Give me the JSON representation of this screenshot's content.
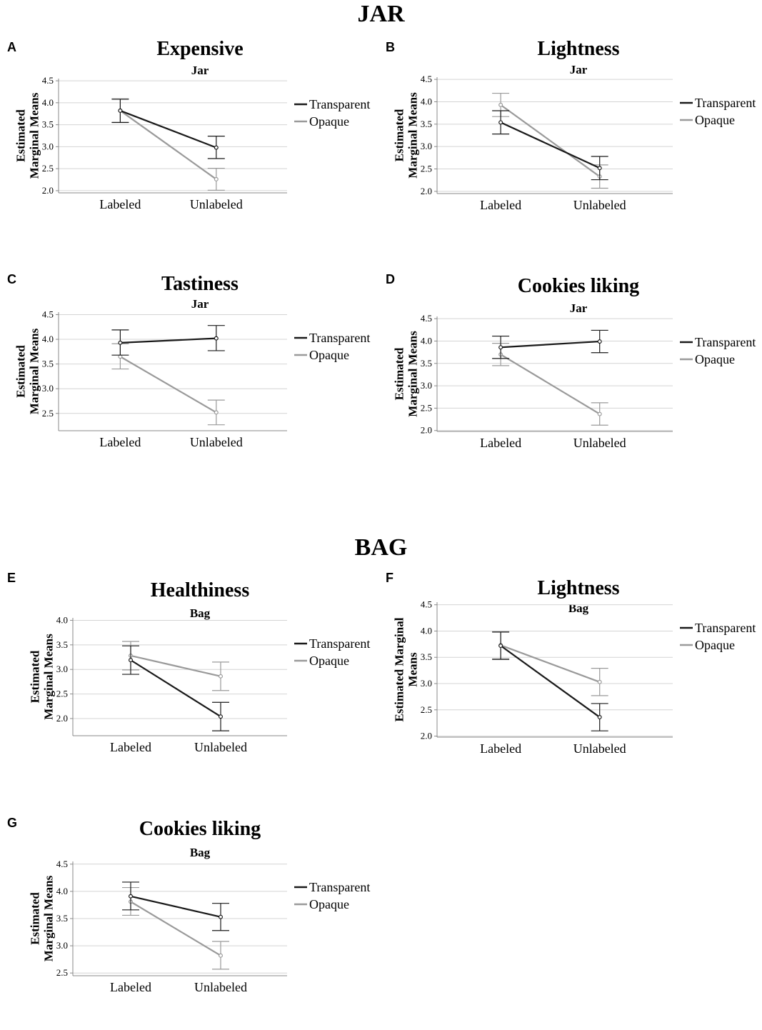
{
  "sections": [
    {
      "title": "JAR"
    },
    {
      "title": "BAG"
    }
  ],
  "colors": {
    "transparent": "#1a1a1a",
    "opaque": "#9a9a9a",
    "grid": "#d4d4d4",
    "axis": "#888888"
  },
  "chart_data": [
    {
      "letter": "A",
      "type": "line",
      "title": "Expensive",
      "subtitle": "Jar",
      "ylabel": [
        "Estimated",
        "Marginal Means"
      ],
      "xlabel": "",
      "categories": [
        "Labeled",
        "Unlabeled"
      ],
      "ylim": [
        1.95,
        4.55
      ],
      "yticks": [
        "2.0",
        "2.5",
        "3.0",
        "3.5",
        "4.0",
        "4.5"
      ],
      "grid": true,
      "legend": "right",
      "series": [
        {
          "name": "Transparent",
          "values": [
            3.82,
            2.98
          ],
          "lower": [
            3.55,
            2.73
          ],
          "upper": [
            4.08,
            3.24
          ]
        },
        {
          "name": "Opaque",
          "values": [
            3.82,
            2.26
          ],
          "lower": [
            3.56,
            2.01
          ],
          "upper": [
            4.09,
            2.51
          ]
        }
      ]
    },
    {
      "letter": "B",
      "type": "line",
      "title": "Lightness",
      "subtitle": "Jar",
      "ylabel": [
        "Estimated",
        "Marginal Means"
      ],
      "xlabel": "",
      "categories": [
        "Labeled",
        "Unlabeled"
      ],
      "ylim": [
        1.95,
        4.55
      ],
      "yticks": [
        "2.0",
        "2.5",
        "3.0",
        "3.5",
        "4.0",
        "4.5"
      ],
      "grid": true,
      "legend": "right",
      "series": [
        {
          "name": "Transparent",
          "values": [
            3.54,
            2.52
          ],
          "lower": [
            3.28,
            2.26
          ],
          "upper": [
            3.8,
            2.78
          ]
        },
        {
          "name": "Opaque",
          "values": [
            3.93,
            2.33
          ],
          "lower": [
            3.67,
            2.07
          ],
          "upper": [
            4.19,
            2.59
          ]
        }
      ]
    },
    {
      "letter": "C",
      "type": "line",
      "title": "Tastiness",
      "subtitle": "Jar",
      "ylabel": [
        "Estimated",
        "Marginal Means"
      ],
      "xlabel": "",
      "categories": [
        "Labeled",
        "Unlabeled"
      ],
      "ylim": [
        2.15,
        4.55
      ],
      "yticks": [
        "2.5",
        "3.0",
        "3.5",
        "4.0",
        "4.5"
      ],
      "grid": true,
      "legend": "right",
      "series": [
        {
          "name": "Transparent",
          "values": [
            3.93,
            4.02
          ],
          "lower": [
            3.68,
            3.77
          ],
          "upper": [
            4.19,
            4.28
          ]
        },
        {
          "name": "Opaque",
          "values": [
            3.65,
            2.52
          ],
          "lower": [
            3.4,
            2.27
          ],
          "upper": [
            3.91,
            2.77
          ]
        }
      ]
    },
    {
      "letter": "D",
      "type": "line",
      "title": "Cookies liking",
      "subtitle": "Jar",
      "ylabel": [
        "Estimated",
        "Marginal Means"
      ],
      "xlabel": "",
      "categories": [
        "Labeled",
        "Unlabeled"
      ],
      "ylim": [
        1.98,
        4.55
      ],
      "yticks": [
        "2.0",
        "2.5",
        "3.0",
        "3.5",
        "4.0",
        "4.5"
      ],
      "grid": true,
      "legend": "right",
      "series": [
        {
          "name": "Transparent",
          "values": [
            3.86,
            3.99
          ],
          "lower": [
            3.61,
            3.74
          ],
          "upper": [
            4.11,
            4.24
          ]
        },
        {
          "name": "Opaque",
          "values": [
            3.7,
            2.37
          ],
          "lower": [
            3.45,
            2.12
          ],
          "upper": [
            3.95,
            2.62
          ]
        }
      ]
    },
    {
      "letter": "E",
      "type": "line",
      "title": "Healthiness",
      "subtitle": "Bag",
      "ylabel": [
        "Estimated",
        "Marginal Means"
      ],
      "xlabel": "",
      "categories": [
        "Labeled",
        "Unlabeled"
      ],
      "ylim": [
        1.65,
        4.05
      ],
      "yticks": [
        "2.0",
        "2.5",
        "3.0",
        "3.5",
        "4.0"
      ],
      "grid": true,
      "legend": "right",
      "series": [
        {
          "name": "Transparent",
          "values": [
            3.19,
            2.04
          ],
          "lower": [
            2.9,
            1.75
          ],
          "upper": [
            3.48,
            2.33
          ]
        },
        {
          "name": "Opaque",
          "values": [
            3.28,
            2.86
          ],
          "lower": [
            2.99,
            2.57
          ],
          "upper": [
            3.57,
            3.15
          ]
        }
      ]
    },
    {
      "letter": "F",
      "type": "line",
      "title": "Lightness",
      "subtitle": "Bag",
      "ylabel": [
        "Estimated Marginal",
        "Means"
      ],
      "xlabel": "",
      "categories": [
        "Labeled",
        "Unlabeled"
      ],
      "ylim": [
        1.98,
        4.55
      ],
      "yticks": [
        "2.0",
        "2.5",
        "3.0",
        "3.5",
        "4.0",
        "4.5"
      ],
      "grid": true,
      "legend": "right",
      "series": [
        {
          "name": "Transparent",
          "values": [
            3.72,
            2.36
          ],
          "lower": [
            3.46,
            2.1
          ],
          "upper": [
            3.98,
            2.62
          ]
        },
        {
          "name": "Opaque",
          "values": [
            3.73,
            3.03
          ],
          "lower": [
            3.47,
            2.77
          ],
          "upper": [
            3.99,
            3.29
          ]
        }
      ]
    },
    {
      "letter": "G",
      "type": "line",
      "title": "Cookies liking",
      "subtitle": "Bag",
      "ylabel": [
        "Estimated",
        "Marginal Means"
      ],
      "xlabel": "",
      "categories": [
        "Labeled",
        "Unlabeled"
      ],
      "ylim": [
        2.45,
        4.55
      ],
      "yticks": [
        "2.5",
        "3.0",
        "3.5",
        "4.0",
        "4.5"
      ],
      "grid": true,
      "legend": "right",
      "series": [
        {
          "name": "Transparent",
          "values": [
            3.91,
            3.53
          ],
          "lower": [
            3.66,
            3.28
          ],
          "upper": [
            4.17,
            3.78
          ]
        },
        {
          "name": "Opaque",
          "values": [
            3.81,
            2.82
          ],
          "lower": [
            3.56,
            2.57
          ],
          "upper": [
            4.07,
            3.08
          ]
        }
      ]
    }
  ]
}
